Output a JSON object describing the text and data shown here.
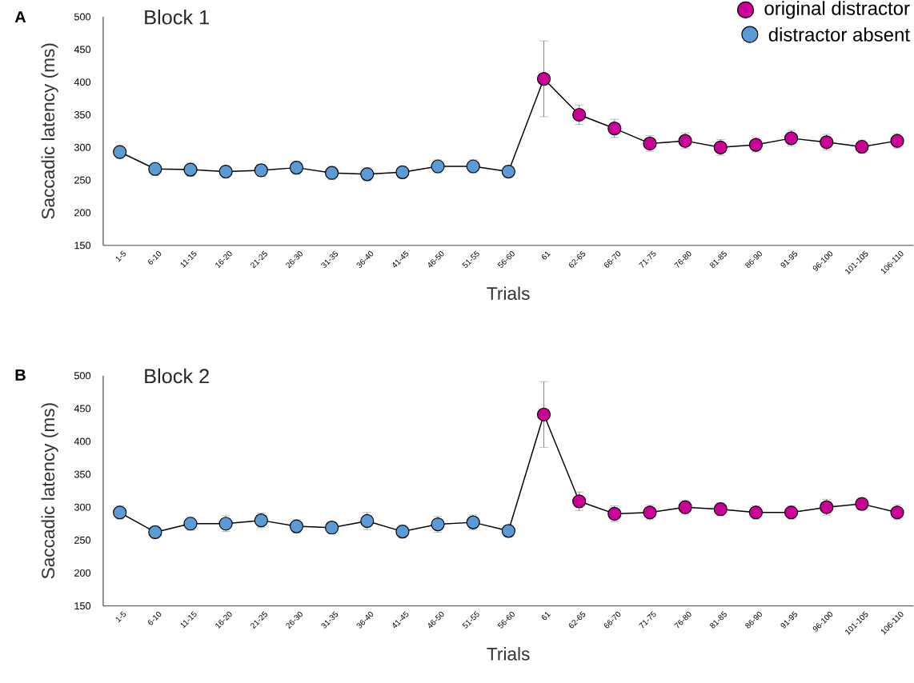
{
  "chart_data": [
    {
      "type": "line",
      "title": "Block 1",
      "xlabel": "Trials",
      "ylabel": "Saccadic latency (ms)",
      "annotations": [
        "A"
      ],
      "categories": [
        "1-5",
        "6-10",
        "11-15",
        "16-20",
        "21-25",
        "26-30",
        "31-35",
        "36-40",
        "41-45",
        "46-50",
        "51-55",
        "56-60",
        "61",
        "62-65",
        "66-70",
        "71-75",
        "76-80",
        "81-85",
        "86-90",
        "91-95",
        "96-100",
        "101-105",
        "106-110"
      ],
      "ylim": [
        150,
        500
      ],
      "yticks": [
        150,
        200,
        250,
        300,
        350,
        400,
        450,
        500
      ],
      "legend": "top right",
      "marker": "circle",
      "series": [
        {
          "name": "original distractor",
          "color": "#cc0099",
          "values": [
            null,
            null,
            null,
            null,
            null,
            null,
            null,
            null,
            null,
            null,
            null,
            263,
            405,
            350,
            329,
            306,
            310,
            300,
            304,
            314,
            308,
            301,
            310
          ],
          "errors": [
            null,
            null,
            null,
            null,
            null,
            null,
            null,
            null,
            null,
            null,
            null,
            null,
            58,
            15,
            14,
            12,
            12,
            12,
            11,
            12,
            12,
            10,
            11
          ]
        },
        {
          "name": "distractor absent",
          "color": "#5b9bd5",
          "values": [
            293,
            267,
            266,
            263,
            265,
            269,
            261,
            259,
            262,
            271,
            271,
            263,
            null,
            null,
            null,
            null,
            null,
            null,
            null,
            null,
            null,
            null,
            null
          ],
          "errors": [
            10,
            10,
            10,
            9,
            9,
            10,
            10,
            10,
            9,
            10,
            10,
            9,
            null,
            null,
            null,
            null,
            null,
            null,
            null,
            null,
            null,
            null,
            null
          ]
        }
      ]
    },
    {
      "type": "line",
      "title": "Block 2",
      "xlabel": "Trials",
      "ylabel": "Saccadic latency (ms)",
      "annotations": [
        "B"
      ],
      "categories": [
        "1-5",
        "6-10",
        "11-15",
        "16-20",
        "21-25",
        "26-30",
        "31-35",
        "36-40",
        "41-45",
        "46-50",
        "51-55",
        "56-60",
        "61",
        "62-65",
        "66-70",
        "71-75",
        "76-80",
        "81-85",
        "86-90",
        "91-95",
        "96-100",
        "101-105",
        "106-110"
      ],
      "ylim": [
        150,
        500
      ],
      "yticks": [
        150,
        200,
        250,
        300,
        350,
        400,
        450,
        500
      ],
      "marker": "circle",
      "series": [
        {
          "color": "#cc0099",
          "values": [
            null,
            null,
            null,
            null,
            null,
            null,
            null,
            null,
            null,
            null,
            null,
            264,
            441,
            309,
            290,
            292,
            300,
            297,
            292,
            292,
            300,
            305,
            292
          ],
          "errors": [
            null,
            null,
            null,
            null,
            null,
            null,
            null,
            null,
            null,
            null,
            null,
            null,
            50,
            14,
            12,
            11,
            10,
            10,
            10,
            10,
            12,
            9,
            11
          ]
        },
        {
          "color": "#5b9bd5",
          "values": [
            292,
            262,
            275,
            275,
            280,
            271,
            269,
            279,
            263,
            274,
            277,
            264,
            null,
            null,
            null,
            null,
            null,
            null,
            null,
            null,
            null,
            null,
            null
          ],
          "errors": [
            10,
            9,
            10,
            12,
            11,
            10,
            9,
            13,
            10,
            12,
            11,
            9,
            null,
            null,
            null,
            null,
            null,
            null,
            null,
            null,
            null,
            null,
            null
          ]
        }
      ]
    }
  ]
}
